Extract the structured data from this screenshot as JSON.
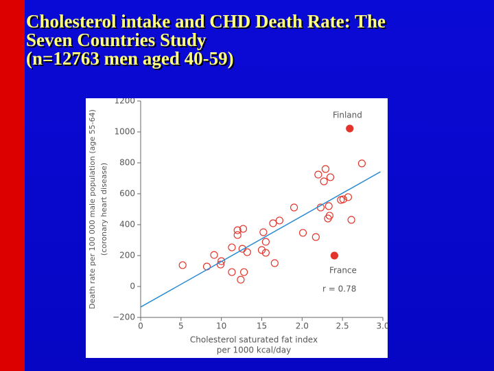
{
  "title_lines": [
    "Cholesterol intake and CHD Death Rate: The",
    "Seven Countries Study",
    "(n=12763 men aged 40-59)"
  ],
  "chart_data": {
    "type": "scatter",
    "y_label_lines": [
      "Death rate per 100 000 male population (age 55-64)",
      "(coronary heart disease)"
    ],
    "x_label_lines": [
      "Cholesterol saturated fat index",
      "per 1000 kcal/day"
    ],
    "xlim": [
      0,
      3.0
    ],
    "ylim": [
      -200,
      1200
    ],
    "xticks": [
      0,
      {
        "value": 0.5,
        "label": "5"
      },
      {
        "value": 1.0,
        "label": "10"
      },
      {
        "value": 1.5,
        "label": "15"
      },
      {
        "value": 2.0,
        "label": "2.0"
      },
      {
        "value": 2.5,
        "label": "2.5"
      },
      {
        "value": 3.0,
        "label": "3.0"
      }
    ],
    "yticks": [
      {
        "value": -200,
        "label": "−200"
      },
      0,
      200,
      400,
      600,
      800,
      1000,
      1200
    ],
    "series": [
      {
        "type": "scatter",
        "marker": "open",
        "color": "#e3342b",
        "x": [
          0.52,
          0.82,
          0.91,
          0.99,
          1.0,
          1.13,
          1.13,
          1.2,
          1.2,
          1.27,
          1.26,
          1.24,
          1.28,
          1.32,
          1.52,
          1.55,
          1.5,
          1.55,
          1.66,
          1.64,
          1.72,
          1.9,
          2.01,
          2.17,
          2.2,
          2.29,
          2.27,
          2.35,
          2.32,
          2.33,
          2.23,
          2.34,
          2.48,
          2.51,
          2.57,
          2.61,
          2.74
        ],
        "values": [
          138,
          129,
          204,
          142,
          164,
          93,
          253,
          364,
          333,
          373,
          244,
          44,
          93,
          222,
          351,
          289,
          236,
          218,
          151,
          409,
          427,
          511,
          347,
          320,
          724,
          760,
          680,
          707,
          440,
          520,
          511,
          458,
          560,
          564,
          578,
          431,
          796
        ]
      },
      {
        "type": "scatter",
        "marker": "filled",
        "color": "#e3342b",
        "x": [
          2.59,
          2.4
        ],
        "values": [
          1022,
          200
        ]
      },
      {
        "type": "line",
        "color": "#2a8bd2",
        "x": [
          0,
          2.97
        ],
        "values": [
          -133,
          742
        ]
      }
    ],
    "annotations": [
      "Finland",
      "France",
      "r = 0.78"
    ]
  }
}
